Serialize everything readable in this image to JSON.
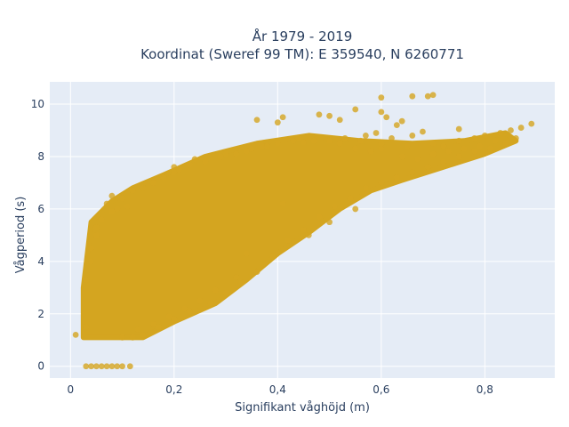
{
  "chart_data": {
    "type": "scatter",
    "title": [
      "År 1979 - 2019",
      "Koordinat (Sweref 99 TM): E 359540, N 6260771"
    ],
    "xlabel": "Signifikant våghöjd (m)",
    "ylabel": "Vågperiod (s)",
    "xlim": [
      -0.04,
      0.935
    ],
    "ylim": [
      -0.45,
      10.85
    ],
    "xticks": [
      0,
      0.2,
      0.4,
      0.6,
      0.8
    ],
    "xtick_labels": [
      "0",
      "0,2",
      "0,4",
      "0,6",
      "0,8"
    ],
    "yticks": [
      0,
      2,
      4,
      6,
      8,
      10
    ],
    "ytick_labels": [
      "0",
      "2",
      "4",
      "6",
      "8",
      "10"
    ],
    "grid": true,
    "legend": "none",
    "colors": {
      "marker": "#d4a520",
      "plot_bg": "#e5ecf6",
      "grid": "#ffffff",
      "text": "#2a3f5f"
    },
    "series": [
      {
        "values_note_omitted": true,
        "points": [
          [
            0.01,
            1.2
          ],
          [
            0.03,
            0.0
          ],
          [
            0.04,
            0.0
          ],
          [
            0.05,
            0.0
          ],
          [
            0.06,
            0.0
          ],
          [
            0.07,
            0.0
          ],
          [
            0.08,
            0.0
          ],
          [
            0.09,
            0.0
          ],
          [
            0.1,
            0.0
          ],
          [
            0.115,
            0.0
          ],
          [
            0.03,
            1.5
          ],
          [
            0.03,
            3.3
          ],
          [
            0.04,
            4.5
          ],
          [
            0.05,
            5.3
          ],
          [
            0.06,
            5.6
          ],
          [
            0.08,
            5.9
          ],
          [
            0.09,
            6.0
          ],
          [
            0.1,
            6.4
          ],
          [
            0.11,
            6.1
          ],
          [
            0.12,
            6.7
          ],
          [
            0.14,
            6.8
          ],
          [
            0.16,
            7.0
          ],
          [
            0.18,
            7.2
          ],
          [
            0.2,
            7.4
          ],
          [
            0.2,
            7.6
          ],
          [
            0.23,
            7.7
          ],
          [
            0.26,
            7.8
          ],
          [
            0.29,
            8.0
          ],
          [
            0.32,
            8.1
          ],
          [
            0.35,
            8.3
          ],
          [
            0.37,
            8.4
          ],
          [
            0.4,
            8.5
          ],
          [
            0.43,
            8.6
          ],
          [
            0.45,
            8.55
          ],
          [
            0.5,
            8.6
          ],
          [
            0.52,
            8.5
          ],
          [
            0.55,
            8.3
          ],
          [
            0.58,
            8.2
          ],
          [
            0.6,
            8.3
          ],
          [
            0.65,
            8.4
          ],
          [
            0.7,
            8.5
          ],
          [
            0.72,
            8.4
          ],
          [
            0.75,
            8.6
          ],
          [
            0.78,
            8.7
          ],
          [
            0.8,
            8.8
          ],
          [
            0.83,
            8.9
          ],
          [
            0.85,
            9.0
          ],
          [
            0.87,
            9.1
          ],
          [
            0.89,
            9.25
          ],
          [
            0.75,
            9.05
          ],
          [
            0.6,
            10.25
          ],
          [
            0.66,
            10.3
          ],
          [
            0.7,
            10.35
          ],
          [
            0.69,
            10.3
          ],
          [
            0.5,
            9.55
          ],
          [
            0.55,
            9.8
          ],
          [
            0.6,
            9.7
          ],
          [
            0.48,
            9.6
          ],
          [
            0.52,
            9.4
          ],
          [
            0.41,
            9.5
          ],
          [
            0.36,
            9.4
          ],
          [
            0.4,
            9.3
          ],
          [
            0.63,
            9.2
          ],
          [
            0.64,
            9.35
          ],
          [
            0.61,
            9.5
          ],
          [
            0.59,
            8.9
          ],
          [
            0.57,
            8.8
          ],
          [
            0.62,
            8.7
          ],
          [
            0.66,
            8.8
          ],
          [
            0.68,
            8.95
          ],
          [
            0.1,
            1.1
          ],
          [
            0.12,
            1.1
          ],
          [
            0.14,
            1.2
          ],
          [
            0.17,
            1.5
          ],
          [
            0.2,
            1.8
          ],
          [
            0.23,
            2.1
          ],
          [
            0.27,
            2.4
          ],
          [
            0.3,
            2.8
          ],
          [
            0.33,
            3.2
          ],
          [
            0.36,
            3.6
          ],
          [
            0.39,
            4.2
          ],
          [
            0.42,
            4.8
          ],
          [
            0.45,
            5.2
          ],
          [
            0.48,
            5.7
          ],
          [
            0.51,
            6.1
          ],
          [
            0.54,
            6.4
          ],
          [
            0.57,
            6.8
          ],
          [
            0.6,
            7.0
          ],
          [
            0.63,
            7.2
          ],
          [
            0.66,
            7.4
          ],
          [
            0.69,
            7.6
          ],
          [
            0.72,
            7.8
          ],
          [
            0.75,
            8.0
          ],
          [
            0.78,
            8.2
          ],
          [
            0.81,
            8.3
          ],
          [
            0.84,
            8.5
          ],
          [
            0.55,
            6.0
          ],
          [
            0.5,
            5.5
          ],
          [
            0.46,
            5.0
          ],
          [
            0.41,
            6.2
          ],
          [
            0.34,
            4.3
          ],
          [
            0.32,
            3.4
          ],
          [
            0.28,
            2.9
          ],
          [
            0.25,
            2.5
          ],
          [
            0.22,
            2.2
          ],
          [
            0.19,
            1.9
          ],
          [
            0.16,
            1.6
          ],
          [
            0.13,
            1.4
          ],
          [
            0.24,
            7.9
          ],
          [
            0.21,
            7.5
          ],
          [
            0.3,
            8.1
          ],
          [
            0.34,
            8.2
          ],
          [
            0.38,
            8.4
          ],
          [
            0.44,
            8.7
          ],
          [
            0.47,
            8.6
          ],
          [
            0.53,
            8.7
          ],
          [
            0.56,
            8.6
          ],
          [
            0.6,
            8.5
          ],
          [
            0.64,
            8.0
          ],
          [
            0.67,
            7.9
          ],
          [
            0.7,
            8.1
          ],
          [
            0.73,
            8.2
          ],
          [
            0.76,
            8.3
          ],
          [
            0.79,
            8.4
          ],
          [
            0.82,
            8.6
          ],
          [
            0.86,
            8.7
          ],
          [
            0.08,
            6.5
          ],
          [
            0.07,
            6.2
          ],
          [
            0.05,
            5.0
          ],
          [
            0.04,
            4.0
          ]
        ]
      }
    ]
  }
}
